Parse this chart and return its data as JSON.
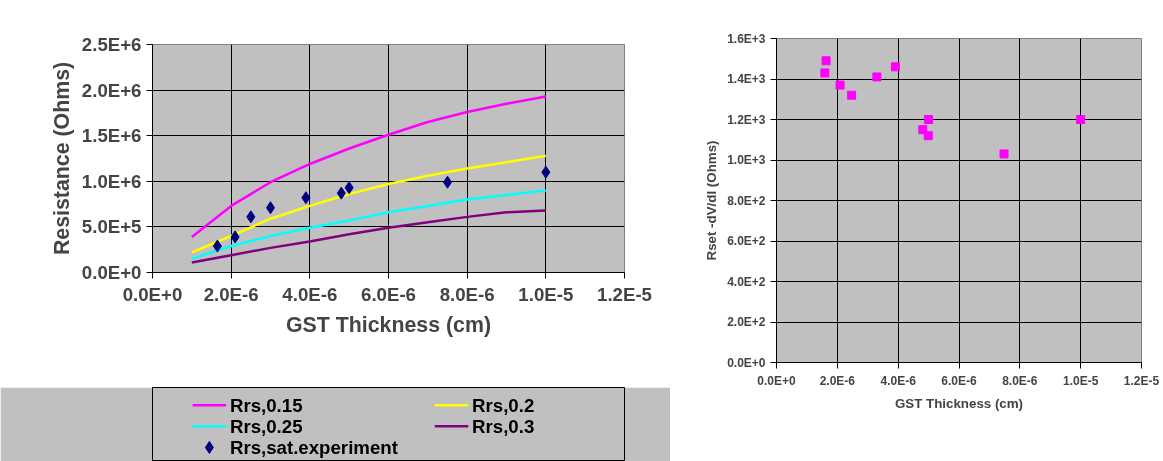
{
  "chart_data": [
    {
      "type": "line",
      "xlabel": "GST Thickness (cm)",
      "ylabel": "Resistance (Ohms)",
      "xlim": [
        0,
        1.2e-05
      ],
      "ylim": [
        0,
        2500000
      ],
      "xticks": [
        {
          "value": 0,
          "label": "0.0E+0"
        },
        {
          "value": 2e-06,
          "label": "2.0E-6"
        },
        {
          "value": 4e-06,
          "label": "4.0E-6"
        },
        {
          "value": 6e-06,
          "label": "6.0E-6"
        },
        {
          "value": 8e-06,
          "label": "8.0E-6"
        },
        {
          "value": 1e-05,
          "label": "1.0E-5"
        },
        {
          "value": 1.2e-05,
          "label": "1.2E-5"
        }
      ],
      "yticks": [
        {
          "value": 0,
          "label": "0.0E+0"
        },
        {
          "value": 500000,
          "label": "5.0E+5"
        },
        {
          "value": 1000000,
          "label": "1.0E+6"
        },
        {
          "value": 1500000,
          "label": "1.5E+6"
        },
        {
          "value": 2000000,
          "label": "2.0E+6"
        },
        {
          "value": 2500000,
          "label": "2.5E+6"
        }
      ],
      "grid": true,
      "legend": "bottom",
      "marker": "none",
      "line_style": "solid",
      "x": [
        1e-06,
        2e-06,
        3e-06,
        4e-06,
        5e-06,
        6e-06,
        7e-06,
        8e-06,
        9e-06,
        1e-05
      ],
      "series": [
        {
          "name": "Rrs,0.15",
          "color": "#ff00ff",
          "values": [
            390000,
            730000,
            990000,
            1190000,
            1360000,
            1510000,
            1650000,
            1760000,
            1850000,
            1930000
          ]
        },
        {
          "name": "Rrs,0.2",
          "color": "#ffff00",
          "values": [
            220000,
            400000,
            590000,
            730000,
            860000,
            970000,
            1060000,
            1140000,
            1210000,
            1280000
          ]
        },
        {
          "name": "Rrs,0.25",
          "color": "#00ffff",
          "values": [
            150000,
            290000,
            400000,
            490000,
            570000,
            660000,
            730000,
            800000,
            850000,
            900000
          ]
        },
        {
          "name": "Rrs,0.3",
          "color": "#800080",
          "values": [
            110000,
            190000,
            270000,
            340000,
            420000,
            490000,
            550000,
            610000,
            660000,
            680000
          ]
        },
        {
          "name": "Rrs,sat.experiment",
          "type": "scatter",
          "marker": "diamond",
          "color": "#000080",
          "x": [
            1.65e-06,
            2.1e-06,
            2.5e-06,
            3e-06,
            3.9e-06,
            4.8e-06,
            5e-06,
            7.5e-06,
            1e-05
          ],
          "values": [
            290000,
            390000,
            610000,
            710000,
            820000,
            870000,
            930000,
            990000,
            1100000
          ]
        }
      ]
    },
    {
      "type": "scatter",
      "xlabel": "GST Thickness (cm)",
      "ylabel": "Rset -dV/dI (Ohms)",
      "xlim": [
        0,
        1.2e-05
      ],
      "ylim": [
        0,
        1600
      ],
      "xticks": [
        {
          "value": 0,
          "label": "0.0E+0"
        },
        {
          "value": 2e-06,
          "label": "2.0E-6"
        },
        {
          "value": 4e-06,
          "label": "4.0E-6"
        },
        {
          "value": 6e-06,
          "label": "6.0E-6"
        },
        {
          "value": 8e-06,
          "label": "8.0E-6"
        },
        {
          "value": 1e-05,
          "label": "1.0E-5"
        },
        {
          "value": 1.2e-05,
          "label": "1.2E-5"
        }
      ],
      "yticks": [
        {
          "value": 0,
          "label": "0.0E+0"
        },
        {
          "value": 200,
          "label": "2.0E+2"
        },
        {
          "value": 400,
          "label": "4.0E+2"
        },
        {
          "value": 600,
          "label": "6.0E+2"
        },
        {
          "value": 800,
          "label": "8.0E+2"
        },
        {
          "value": 1000,
          "label": "1.0E+3"
        },
        {
          "value": 1200,
          "label": "1.2E+3"
        },
        {
          "value": 1400,
          "label": "1.4E+3"
        },
        {
          "value": 1600,
          "label": "1.6E+3"
        }
      ],
      "grid": true,
      "marker": "square",
      "series": [
        {
          "color": "#ff00ff",
          "x": [
            1.63e-06,
            1.59e-06,
            2.09e-06,
            2.47e-06,
            3.3e-06,
            3.91e-06,
            5e-06,
            4.81e-06,
            4.99e-06,
            7.48e-06,
            1e-05
          ],
          "values": [
            1490,
            1430,
            1370,
            1320,
            1410,
            1460,
            1200,
            1150,
            1120,
            1030,
            1200
          ]
        }
      ]
    }
  ]
}
